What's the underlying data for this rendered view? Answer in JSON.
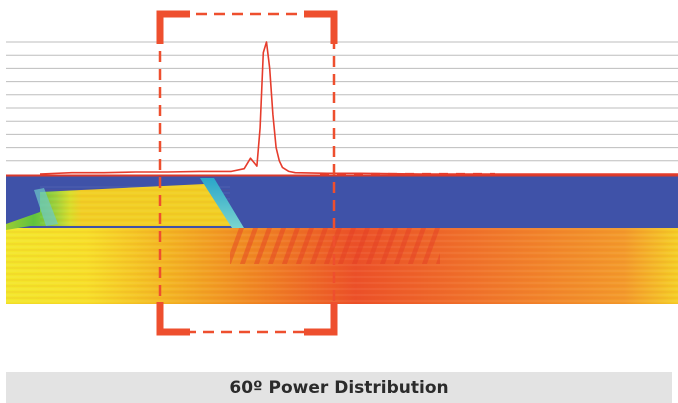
{
  "caption": "60º Power Distribution",
  "colors": {
    "profile_line": "#e63c2c",
    "focus_marker": "#ee4f2e",
    "grid_line": "#bdbdbd",
    "baseline": "#d83a2c",
    "waveguide_background": "#3f52a8",
    "caption_background": "#e3e3e3",
    "caption_text": "#2b2b2b"
  },
  "chart_data": {
    "type": "line",
    "title": "",
    "xlabel": "",
    "ylabel": "",
    "grid": true,
    "series": [
      {
        "x": [
          0,
          0.05,
          0.1,
          0.15,
          0.2,
          0.25,
          0.3,
          0.32,
          0.33,
          0.34,
          0.345,
          0.35,
          0.355,
          0.36,
          0.365,
          0.37,
          0.375,
          0.38,
          0.39,
          0.4,
          0.45,
          0.5,
          0.6,
          0.7,
          0.8,
          0.9,
          1.0
        ],
        "y": [
          0.0,
          0.01,
          0.01,
          0.015,
          0.015,
          0.02,
          0.02,
          0.04,
          0.12,
          0.06,
          0.35,
          0.92,
          1.0,
          0.8,
          0.45,
          0.2,
          0.1,
          0.05,
          0.02,
          0.01,
          0.005,
          0.005,
          0.0,
          0.0,
          0.0,
          0.0,
          0.0
        ]
      }
    ],
    "xlim": [
      0,
      1
    ],
    "ylim": [
      0,
      1
    ]
  }
}
